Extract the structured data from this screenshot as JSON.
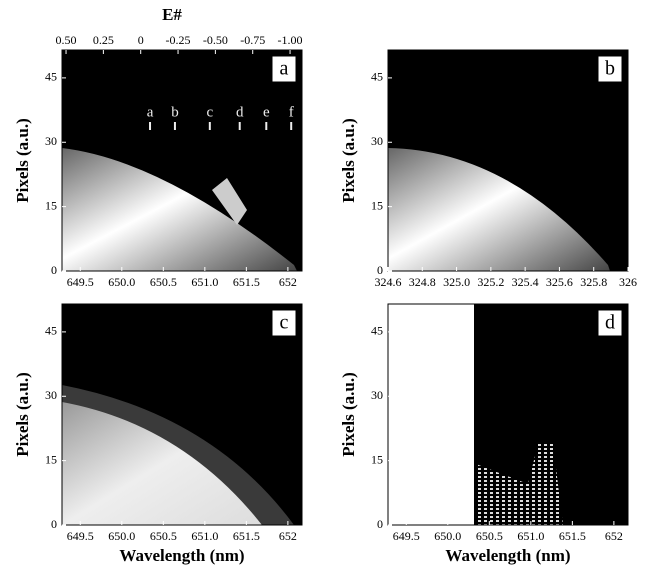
{
  "chart_data": [
    {
      "type": "image",
      "panel": "a",
      "ylabel": "Pixels (a.u.)",
      "xlim": [
        649.28,
        652.17
      ],
      "xticks": [
        649.5,
        {
          "value": 650,
          "label": "650.0"
        },
        650.5,
        {
          "value": 651,
          "label": "651.0"
        },
        651.5,
        652
      ],
      "ylim": [
        0,
        51.5
      ],
      "yticks": [
        0,
        15,
        30,
        45
      ],
      "x2label": "E#",
      "x2lim": [
        0.527,
        -1.08
      ],
      "x2ticks": [
        {
          "value": 0.5,
          "label": "0.50"
        },
        0.25,
        0,
        -0.25,
        {
          "value": -0.5,
          "label": "-0.50"
        },
        -0.75,
        {
          "value": -1,
          "label": "-1.00"
        }
      ],
      "annotations": [
        {
          "text": "a",
          "x": 650.34
        },
        {
          "text": "b",
          "x": 650.64
        },
        {
          "text": "c",
          "x": 651.06
        },
        {
          "text": "d",
          "x": 651.42
        },
        {
          "text": "e",
          "x": 651.74
        },
        {
          "text": "f",
          "x": 652.04
        }
      ]
    },
    {
      "type": "image",
      "panel": "b",
      "ylabel": "Pixels (a.u.)",
      "xlim": [
        324.6,
        326
      ],
      "xticks": [
        324.6,
        324.8,
        {
          "value": 325,
          "label": "325.0"
        },
        325.2,
        325.4,
        325.6,
        325.8,
        326
      ],
      "ylim": [
        0,
        51.5
      ],
      "yticks": [
        0,
        15,
        30,
        45
      ]
    },
    {
      "type": "image",
      "panel": "c",
      "ylabel": "Pixels (a.u.)",
      "xlabel": "Wavelength (nm)",
      "xlim": [
        649.28,
        652.17
      ],
      "xticks": [
        649.5,
        {
          "value": 650,
          "label": "650.0"
        },
        650.5,
        {
          "value": 651,
          "label": "651.0"
        },
        651.5,
        652
      ],
      "ylim": [
        0,
        51.5
      ],
      "yticks": [
        0,
        15,
        30,
        45
      ]
    },
    {
      "type": "image",
      "panel": "d",
      "ylabel": "Pixels (a.u.)",
      "xlabel": "Wavelength (nm)",
      "xlim": [
        649.28,
        652.17
      ],
      "xticks": [
        649.5,
        {
          "value": 650,
          "label": "650.0"
        },
        650.5,
        {
          "value": 651,
          "label": "651.0"
        },
        651.5,
        652
      ],
      "ylim": [
        0,
        51.5
      ],
      "yticks": [
        0,
        15,
        30,
        45
      ]
    }
  ]
}
